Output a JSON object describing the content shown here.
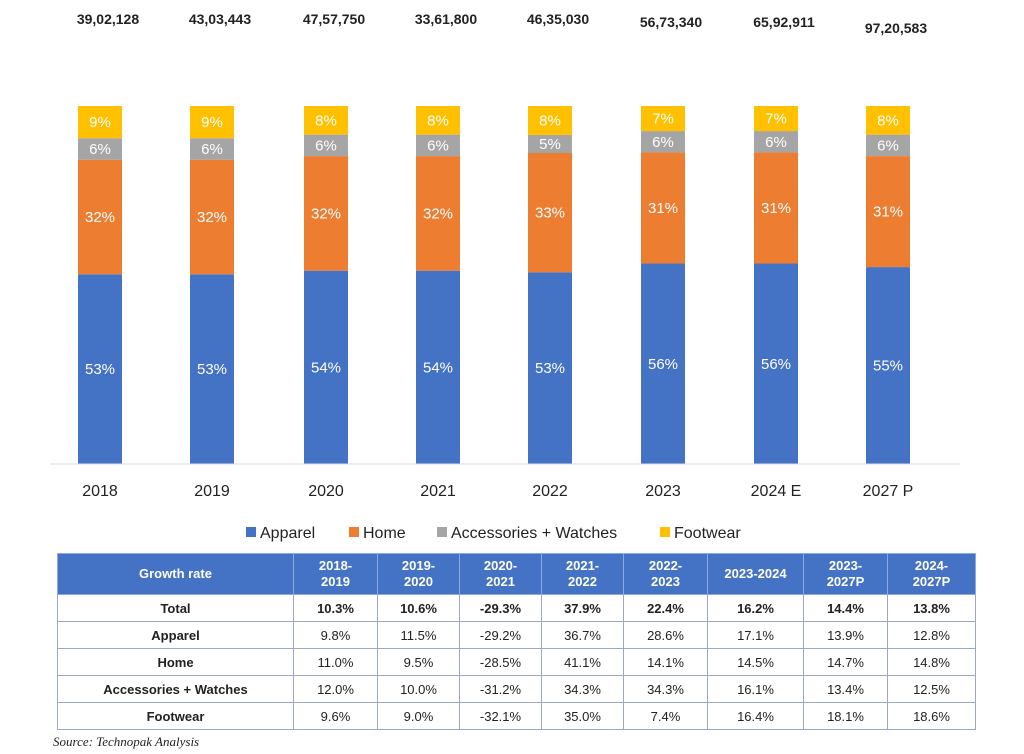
{
  "chart_data": {
    "type": "bar",
    "stacked": true,
    "normalized_percent": true,
    "categories": [
      "2018",
      "2019",
      "2020",
      "2021",
      "2022",
      "2023",
      "2024 E",
      "2027 P"
    ],
    "totals": [
      "39,02,128",
      "43,03,443",
      "47,57,750",
      "33,61,800",
      "46,35,030",
      "56,73,340",
      "65,92,911",
      "97,20,583"
    ],
    "series": [
      {
        "name": "Apparel",
        "color": "#4472c4",
        "values": [
          53,
          53,
          54,
          54,
          53,
          56,
          56,
          55
        ]
      },
      {
        "name": "Home",
        "color": "#ed7d31",
        "values": [
          32,
          32,
          32,
          32,
          33,
          31,
          31,
          31
        ]
      },
      {
        "name": "Accessories + Watches",
        "color": "#a5a5a5",
        "values": [
          6,
          6,
          6,
          6,
          5,
          6,
          6,
          6
        ]
      },
      {
        "name": "Footwear",
        "color": "#ffc000",
        "values": [
          9,
          9,
          8,
          8,
          8,
          7,
          7,
          8
        ]
      }
    ],
    "legend_position": "bottom",
    "ylim": [
      0,
      100
    ]
  },
  "table": {
    "header": "Growth rate",
    "columns": [
      "2018-\n2019",
      "2019-\n2020",
      "2020-\n2021",
      "2021-\n2022",
      "2022-\n2023",
      "2023-2024",
      "2023-\n2027P",
      "2024-\n2027P"
    ],
    "rows": [
      {
        "label": "Total",
        "values": [
          "10.3%",
          "10.6%",
          "-29.3%",
          "37.9%",
          "22.4%",
          "16.2%",
          "14.4%",
          "13.8%"
        ]
      },
      {
        "label": "Apparel",
        "values": [
          "9.8%",
          "11.5%",
          "-29.2%",
          "36.7%",
          "28.6%",
          "17.1%",
          "13.9%",
          "12.8%"
        ]
      },
      {
        "label": "Home",
        "values": [
          "11.0%",
          "9.5%",
          "-28.5%",
          "41.1%",
          "14.1%",
          "14.5%",
          "14.7%",
          "14.8%"
        ]
      },
      {
        "label": "Accessories + Watches",
        "values": [
          "12.0%",
          "10.0%",
          "-31.2%",
          "34.3%",
          "34.3%",
          "16.1%",
          "13.4%",
          "12.5%"
        ]
      },
      {
        "label": "Footwear",
        "values": [
          "9.6%",
          "9.0%",
          "-32.1%",
          "35.0%",
          "7.4%",
          "16.4%",
          "18.1%",
          "18.6%"
        ]
      }
    ]
  },
  "source": "Source: Technopak Analysis"
}
